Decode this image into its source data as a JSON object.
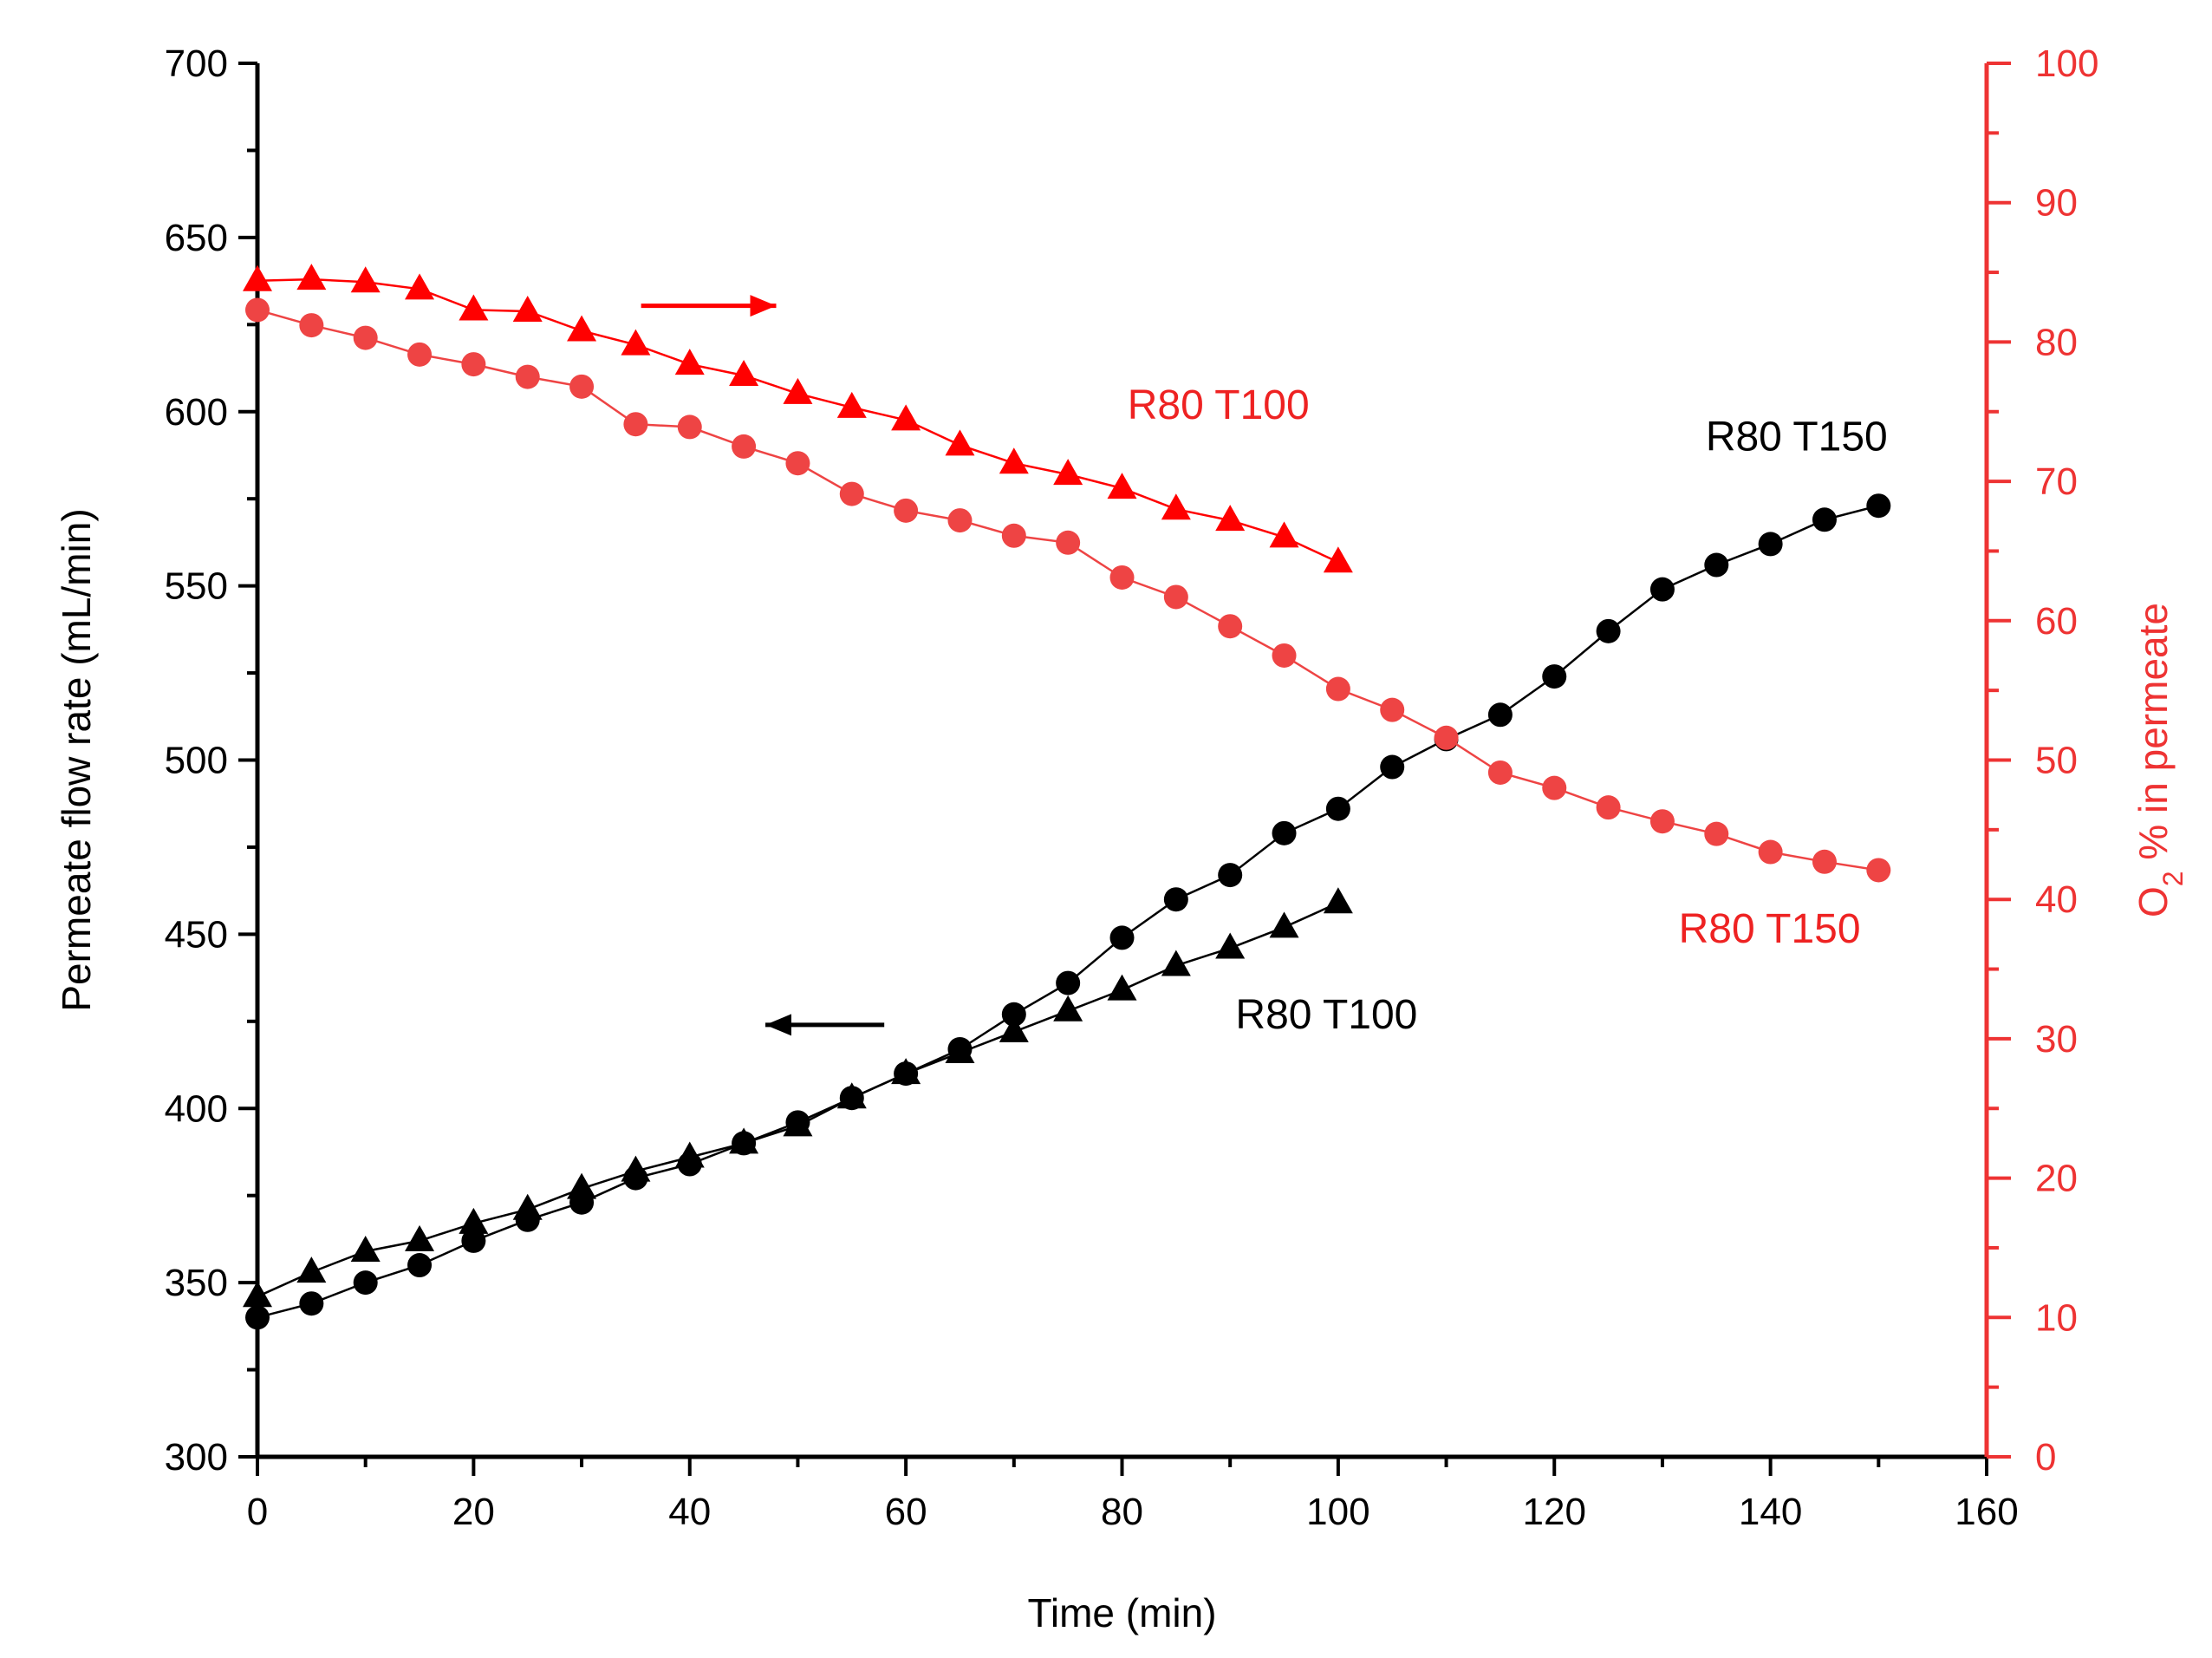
{
  "chart_data": {
    "type": "line",
    "title": "",
    "xlabel": "Time (min)",
    "ylabel_left": "Permeate flow rate (mL/min)",
    "ylabel_right": {
      "o": "O",
      "sub": "2",
      "rest": " % in permeate"
    },
    "xlim": [
      0,
      160
    ],
    "ylim_left": [
      300,
      700
    ],
    "ylim_right": [
      0,
      100
    ],
    "x_ticks": [
      0,
      20,
      40,
      60,
      80,
      100,
      120,
      140,
      160
    ],
    "y_left_ticks": [
      300,
      350,
      400,
      450,
      500,
      550,
      600,
      650,
      700
    ],
    "y_right_ticks": [
      0,
      10,
      20,
      30,
      40,
      50,
      60,
      70,
      80,
      90,
      100
    ],
    "grid": false,
    "series": [
      {
        "name": "R80 T150 flow",
        "axis": "left",
        "marker": "circle",
        "color": "#000000",
        "x": [
          0,
          5,
          10,
          15,
          20,
          25,
          30,
          35,
          40,
          45,
          50,
          55,
          60,
          65,
          70,
          75,
          80,
          85,
          90,
          95,
          100,
          105,
          110,
          115,
          120,
          125,
          130,
          135,
          140,
          145,
          150
        ],
        "values": [
          340,
          344,
          350,
          355,
          362,
          368,
          373,
          380,
          384,
          390,
          396,
          403,
          410,
          417,
          427,
          436,
          449,
          460,
          467,
          479,
          486,
          498,
          506,
          513,
          524,
          537,
          549,
          556,
          562,
          569,
          573
        ]
      },
      {
        "name": "R80 T100 flow",
        "axis": "left",
        "marker": "triangle",
        "color": "#000000",
        "x": [
          0,
          5,
          10,
          15,
          20,
          25,
          30,
          35,
          40,
          45,
          50,
          55,
          60,
          65,
          70,
          75,
          80,
          85,
          90,
          95,
          100
        ],
        "values": [
          346,
          353,
          359,
          362,
          367,
          371,
          377,
          382,
          386,
          390,
          395,
          403,
          410,
          416,
          422,
          428,
          434,
          441,
          446,
          452,
          459
        ]
      },
      {
        "name": "R80 T150 O2",
        "axis": "right",
        "marker": "circle",
        "color": "#ee4444",
        "x": [
          0,
          5,
          10,
          15,
          20,
          25,
          30,
          35,
          40,
          45,
          50,
          55,
          60,
          65,
          70,
          75,
          80,
          85,
          90,
          95,
          100,
          105,
          110,
          115,
          120,
          125,
          130,
          135,
          140,
          145,
          150
        ],
        "values": [
          82.3,
          81.2,
          80.3,
          79.1,
          78.4,
          77.5,
          76.8,
          74.1,
          73.9,
          72.5,
          71.3,
          69.1,
          67.9,
          67.2,
          66.1,
          65.6,
          63.1,
          61.7,
          59.6,
          57.5,
          55.1,
          53.6,
          51.6,
          49.1,
          48.0,
          46.6,
          45.6,
          44.7,
          43.4,
          42.7,
          42.1
        ]
      },
      {
        "name": "R80 T100 O2",
        "axis": "right",
        "marker": "triangle",
        "color": "#ff0000",
        "x": [
          0,
          5,
          10,
          15,
          20,
          25,
          30,
          35,
          40,
          45,
          50,
          55,
          60,
          65,
          70,
          75,
          80,
          85,
          90,
          95,
          100
        ],
        "values": [
          84.4,
          84.5,
          84.3,
          83.8,
          82.3,
          82.2,
          80.8,
          79.8,
          78.4,
          77.6,
          76.3,
          75.3,
          74.4,
          72.6,
          71.3,
          70.5,
          69.5,
          68.0,
          67.2,
          66.0,
          64.2
        ]
      }
    ],
    "annotations": [
      {
        "text": "R80 T100",
        "color": "#ee2222",
        "anchor": "start",
        "at_x": 80.5,
        "at_y_right": 74.5
      },
      {
        "text": "R80 T150",
        "color": "#000000",
        "anchor": "start",
        "at_x": 134,
        "at_y_right": 72.2
      },
      {
        "text": "R80 T150",
        "color": "#ee2222",
        "anchor": "start",
        "at_x": 131.5,
        "at_y_right": 36.9
      },
      {
        "text": "R80 T100",
        "color": "#000000",
        "anchor": "start",
        "at_x": 90.5,
        "at_y_left": 423
      }
    ],
    "arrows": [
      {
        "name": "right-axis-arrow",
        "color": "#ff0000",
        "x_from": 35.5,
        "x_to": 48,
        "y_right": 82.6
      },
      {
        "name": "left-axis-arrow",
        "color": "#000000",
        "x_from": 58,
        "x_to": 47,
        "y_left": 424
      }
    ]
  }
}
